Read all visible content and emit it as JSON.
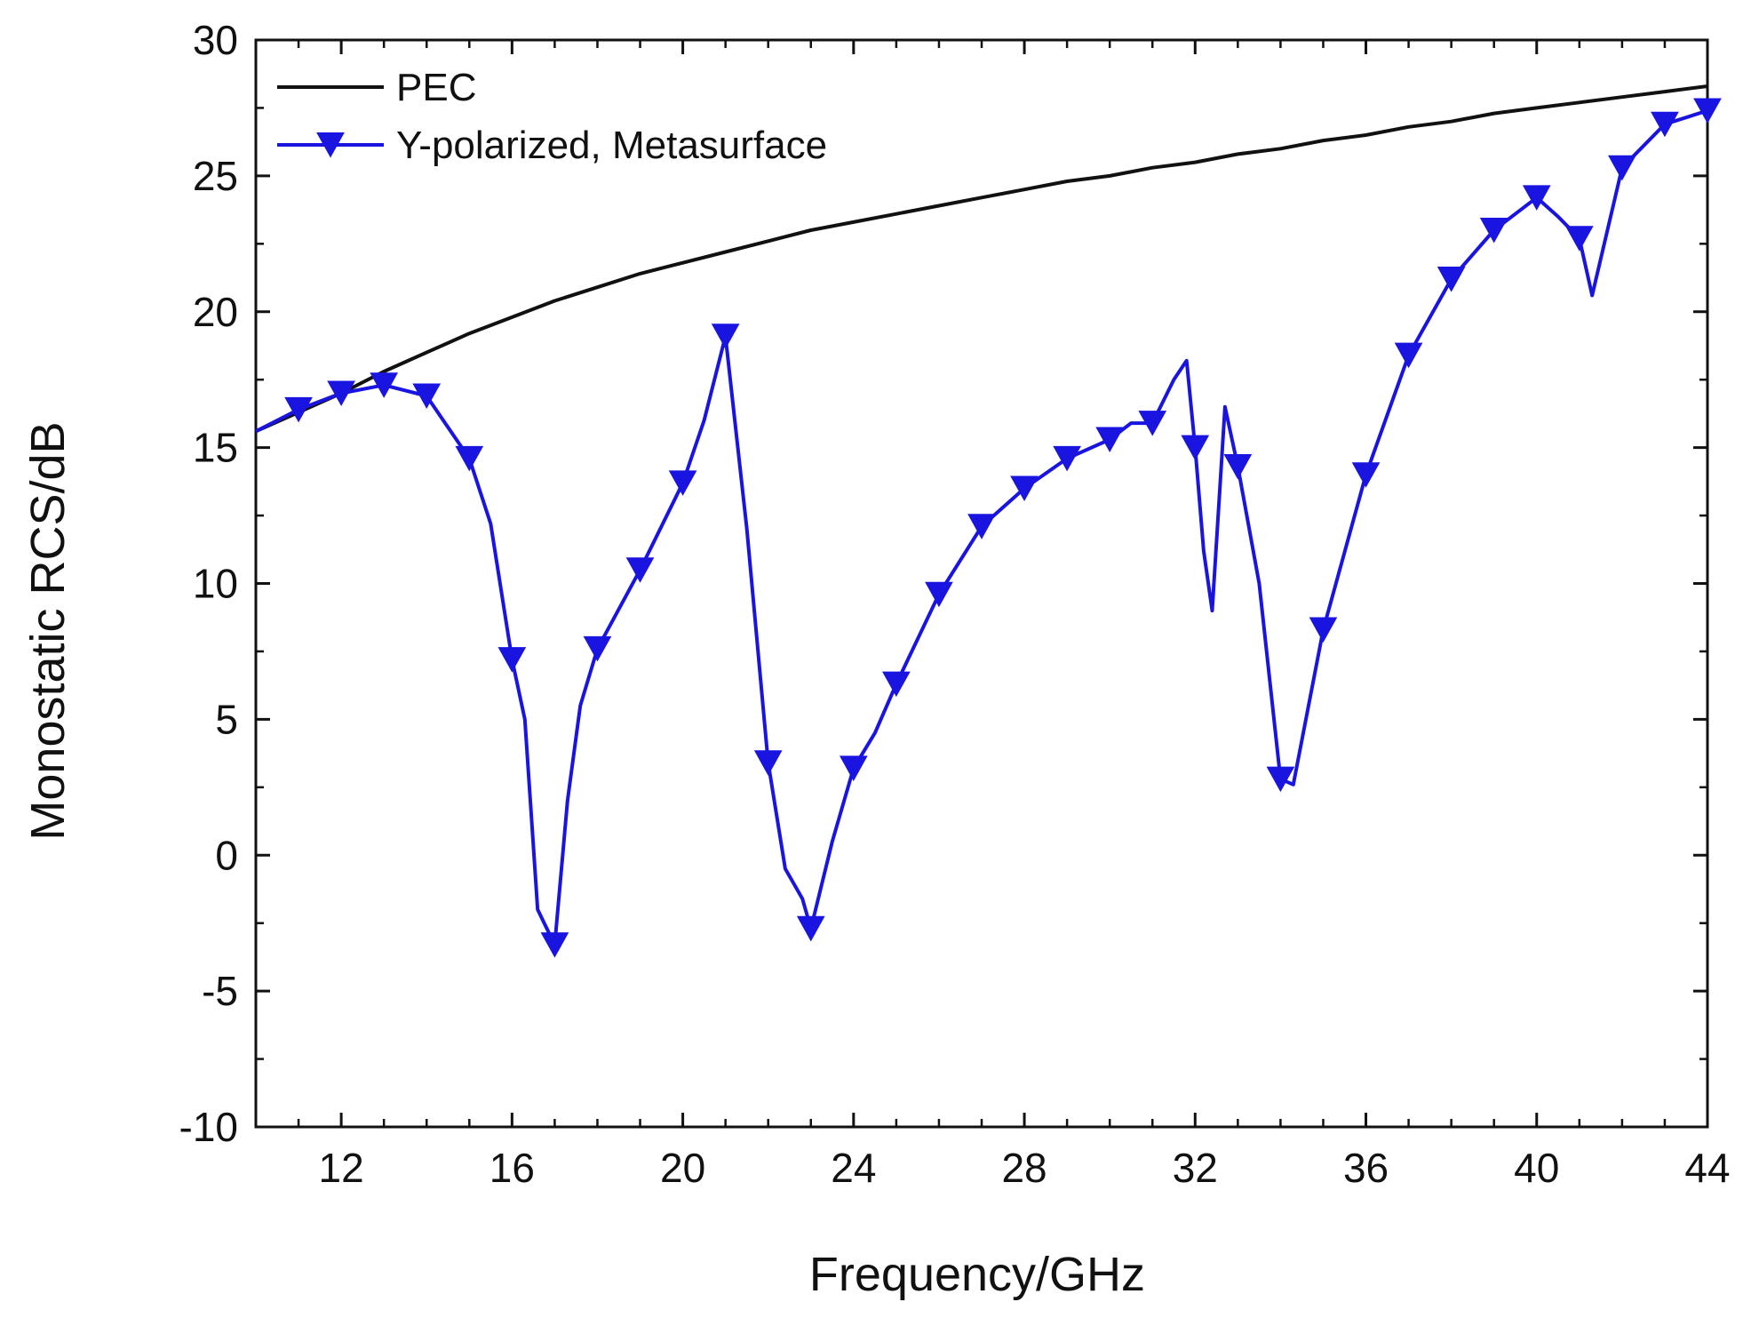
{
  "chart_data": {
    "type": "line",
    "xlabel": "Frequency/GHz",
    "ylabel": "Monostatic RCS/dB",
    "xlim": [
      10,
      44
    ],
    "ylim": [
      -10,
      30
    ],
    "x_ticks": [
      12,
      16,
      20,
      24,
      28,
      32,
      36,
      40,
      44
    ],
    "y_ticks": [
      -10,
      -5,
      0,
      5,
      10,
      15,
      20,
      25,
      30
    ],
    "x_tick_labels": [
      "12",
      "16",
      "20",
      "24",
      "28",
      "32",
      "36",
      "40",
      "44"
    ],
    "y_tick_labels": [
      "-10",
      "-5",
      "0",
      "5",
      "10",
      "15",
      "20",
      "25",
      "30"
    ],
    "grid": false,
    "legend_position": "top-left",
    "series": [
      {
        "name": "PEC",
        "color": "#111111",
        "marker": "none",
        "x": [
          10,
          11,
          12,
          13,
          14,
          15,
          16,
          17,
          18,
          19,
          20,
          21,
          22,
          23,
          24,
          25,
          26,
          27,
          28,
          29,
          30,
          31,
          32,
          33,
          34,
          35,
          36,
          37,
          38,
          39,
          40,
          41,
          42,
          43,
          44
        ],
        "y": [
          15.6,
          16.3,
          17.0,
          17.8,
          18.5,
          19.2,
          19.8,
          20.4,
          20.9,
          21.4,
          21.8,
          22.2,
          22.6,
          23.0,
          23.3,
          23.6,
          23.9,
          24.2,
          24.5,
          24.8,
          25.0,
          25.3,
          25.5,
          25.8,
          26.0,
          26.3,
          26.5,
          26.8,
          27.0,
          27.3,
          27.5,
          27.7,
          27.9,
          28.1,
          28.3
        ]
      },
      {
        "name": "Y-polarized, Metasurface",
        "color": "#1a14e0",
        "marker": "down-triangle",
        "x": [
          10,
          11,
          12,
          13,
          14,
          15,
          15.5,
          16,
          16.3,
          16.6,
          17,
          17.3,
          17.6,
          18,
          19,
          20,
          20.5,
          21,
          21.5,
          22,
          22.4,
          22.8,
          23,
          23.5,
          24,
          24.5,
          25,
          26,
          27,
          28,
          29,
          30,
          30.5,
          31,
          31.5,
          31.8,
          32,
          32.2,
          32.4,
          32.7,
          33,
          33.5,
          34,
          34.3,
          35,
          36,
          37,
          38,
          39,
          40,
          40.5,
          41,
          41.3,
          42,
          43,
          44
        ],
        "y": [
          15.6,
          16.4,
          17.0,
          17.3,
          16.9,
          14.6,
          12.2,
          7.2,
          5.0,
          -2.0,
          -3.3,
          2.0,
          5.5,
          7.6,
          10.5,
          13.7,
          16.0,
          19.1,
          12.0,
          3.4,
          -0.5,
          -1.6,
          -2.7,
          0.5,
          3.2,
          4.5,
          6.3,
          9.6,
          12.1,
          13.5,
          14.6,
          15.3,
          15.9,
          15.9,
          17.5,
          18.2,
          15.0,
          11.2,
          9.0,
          16.5,
          14.3,
          10.0,
          2.8,
          2.6,
          8.3,
          14.0,
          18.4,
          21.2,
          23.0,
          24.2,
          23.5,
          22.7,
          20.6,
          25.3,
          26.9,
          27.4
        ]
      }
    ],
    "marker_x": {
      "Y-polarized, Metasurface": [
        11,
        12,
        13,
        14,
        15,
        16,
        17,
        18,
        19,
        20,
        21,
        22,
        23,
        24,
        25,
        26,
        27,
        28,
        29,
        30,
        31,
        32,
        33,
        34,
        35,
        36,
        37,
        38,
        39,
        40,
        41,
        42,
        43,
        44
      ]
    }
  }
}
